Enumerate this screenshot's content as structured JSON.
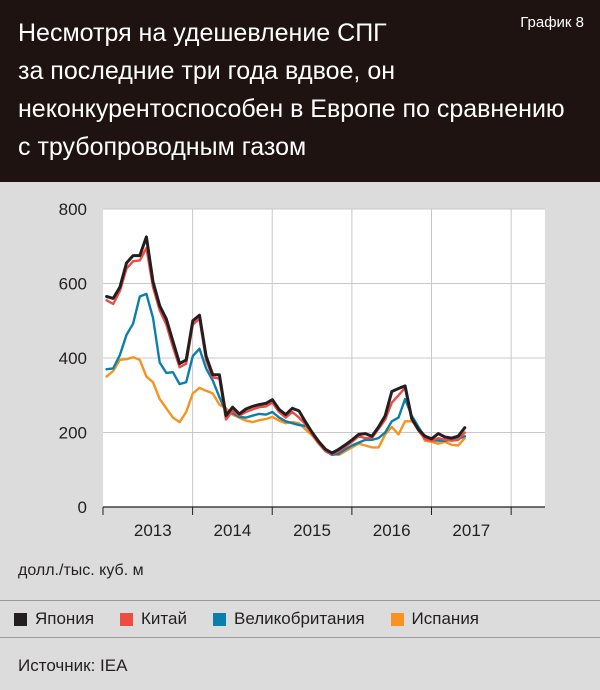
{
  "header": {
    "title": "Несмотря на удешевление СПГ\nза последние три года вдвое, он\nнеконкурентоспособен в Европе по сравнению\nс трубопроводным газом",
    "badge": "График 8"
  },
  "unit_label": "долл./тыс. куб. м",
  "source": "Источник: IEA",
  "chart_data": {
    "type": "line",
    "title": "Несмотря на удешевление СПГ за последние три года вдвое, он неконкурентоспособен в Европе по сравнению с трубопроводным газом",
    "ylabel": "долл./тыс. куб. м",
    "ylim": [
      0,
      800
    ],
    "yticks": [
      0,
      200,
      400,
      600,
      800
    ],
    "x_start": 2012.42,
    "x_step": 0.0833,
    "xlim": [
      2012.375,
      2017.925
    ],
    "xticks": [
      {
        "label": "2013",
        "x": 2013.0
      },
      {
        "label": "2014",
        "x": 2014.0
      },
      {
        "label": "2015",
        "x": 2015.0
      },
      {
        "label": "2016",
        "x": 2016.0
      },
      {
        "label": "2017",
        "x": 2017.0
      }
    ],
    "xticks_minor": [
      2013.5,
      2014.5,
      2015.5,
      2016.5,
      2017.5
    ],
    "grid": true,
    "legend_position": "bottom",
    "series": [
      {
        "name": "Испания",
        "color": "#f7931e",
        "values": [
          350,
          365,
          395,
          397,
          402,
          395,
          350,
          335,
          290,
          265,
          240,
          228,
          255,
          305,
          320,
          312,
          305,
          275,
          265,
          248,
          240,
          232,
          228,
          233,
          236,
          242,
          232,
          225,
          228,
          225,
          208,
          192,
          170,
          150,
          143,
          140,
          150,
          160,
          170,
          165,
          160,
          160,
          195,
          215,
          195,
          230,
          230,
          215,
          178,
          175,
          170,
          175,
          167,
          165,
          185
        ]
      },
      {
        "name": "Великобритания",
        "color": "#0b7fab",
        "values": [
          370,
          372,
          408,
          462,
          492,
          565,
          572,
          508,
          388,
          360,
          362,
          330,
          335,
          405,
          425,
          372,
          340,
          295,
          255,
          252,
          242,
          240,
          245,
          250,
          248,
          255,
          240,
          230,
          225,
          220,
          218,
          200,
          170,
          150,
          140,
          143,
          155,
          165,
          173,
          180,
          180,
          185,
          200,
          230,
          240,
          290,
          245,
          215,
          188,
          180,
          178,
          178,
          180,
          182,
          190
        ]
      },
      {
        "name": "Китай",
        "color": "#ef4b45",
        "values": [
          555,
          545,
          580,
          640,
          660,
          662,
          695,
          590,
          528,
          490,
          430,
          375,
          385,
          490,
          505,
          395,
          348,
          345,
          235,
          258,
          245,
          255,
          262,
          268,
          270,
          280,
          255,
          240,
          255,
          240,
          222,
          195,
          170,
          150,
          142,
          150,
          162,
          175,
          190,
          185,
          185,
          210,
          235,
          280,
          300,
          320,
          235,
          205,
          182,
          178,
          185,
          180,
          178,
          180,
          200
        ]
      },
      {
        "name": "Япония",
        "color": "#231f20",
        "values": [
          565,
          560,
          590,
          655,
          675,
          675,
          725,
          605,
          540,
          505,
          445,
          385,
          395,
          500,
          515,
          405,
          355,
          355,
          245,
          268,
          250,
          263,
          270,
          275,
          278,
          288,
          262,
          248,
          265,
          258,
          228,
          200,
          175,
          155,
          145,
          155,
          167,
          180,
          195,
          197,
          190,
          215,
          245,
          310,
          318,
          325,
          238,
          208,
          190,
          183,
          197,
          188,
          185,
          190,
          213
        ]
      }
    ]
  },
  "legend_order": [
    "Япония",
    "Китай",
    "Великобритания",
    "Испания"
  ]
}
